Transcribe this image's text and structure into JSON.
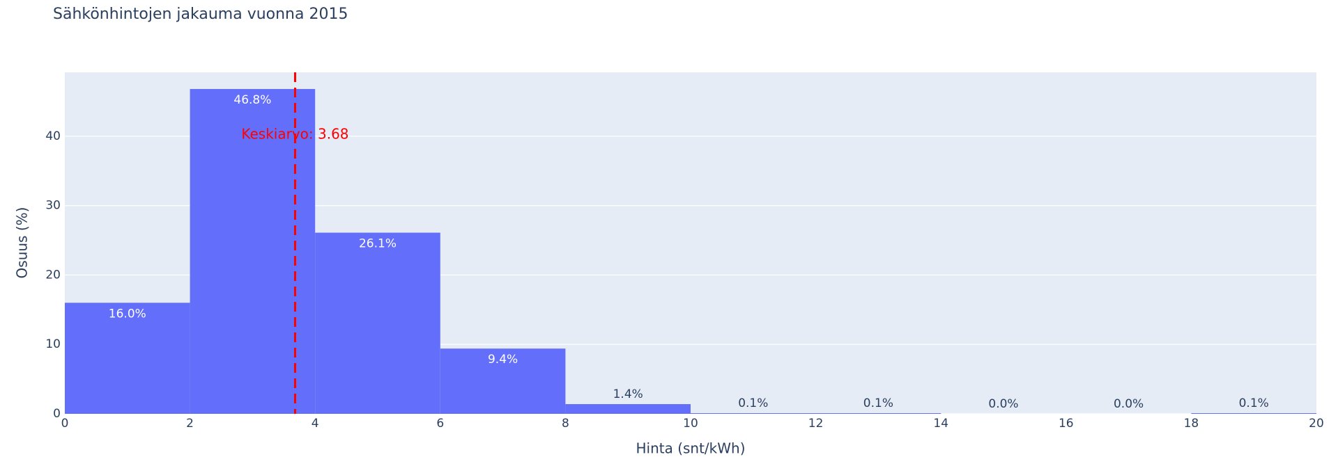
{
  "chart_data": {
    "type": "histogram",
    "title": "Sähkönhintojen jakauma vuonna 2015",
    "x_label": "Hinta (snt/kWh)",
    "y_label": "Osuus (%)",
    "bins": [
      0,
      2,
      4,
      6,
      8,
      10,
      12,
      14,
      16,
      18,
      20
    ],
    "values": [
      16.0,
      46.8,
      26.1,
      9.4,
      1.4,
      0.1,
      0.1,
      0.0,
      0.0,
      0.1
    ],
    "value_labels": [
      "16.0%",
      "46.8%",
      "26.1%",
      "9.4%",
      "1.4%",
      "0.1%",
      "0.1%",
      "0.0%",
      "0.0%",
      "0.1%"
    ],
    "color": "#636efa",
    "xlim": [
      0,
      20
    ],
    "xticks": [
      0,
      2,
      4,
      6,
      8,
      10,
      12,
      14,
      16,
      18,
      20
    ],
    "ylim": [
      0,
      49.2
    ],
    "yticks": [
      0,
      10,
      20,
      30,
      40
    ],
    "grid": true,
    "mean_line": {
      "x": 3.68,
      "label": "Keskiarvo: 3.68",
      "color": "#ff0000"
    }
  }
}
